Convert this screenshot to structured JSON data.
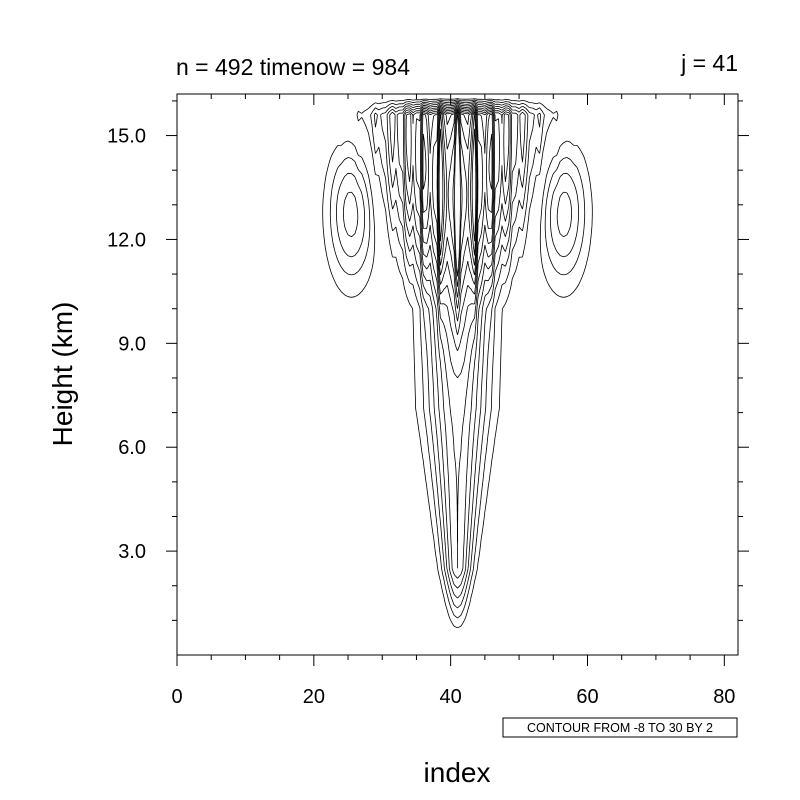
{
  "chart_data": {
    "type": "contour",
    "title_left": "n = 492 timenow = 984",
    "title_right": "j = 41",
    "xlabel": "index",
    "ylabel": "Height (km)",
    "xlim": [
      0,
      82
    ],
    "ylim": [
      0,
      16.2
    ],
    "xticks": [
      0,
      20,
      40,
      60,
      80
    ],
    "xtick_labels": [
      "0",
      "20",
      "40",
      "60",
      "80"
    ],
    "yticks": [
      3,
      6,
      9,
      12,
      15
    ],
    "ytick_labels": [
      "3.0",
      "6.0",
      "9.0",
      "12.0",
      "15.0"
    ],
    "contour_info": "CONTOUR FROM -8 TO 30 BY 2",
    "contour_min": -8,
    "contour_max": 30,
    "contour_interval": 2,
    "negative_contours_dashed": true,
    "field_structure": {
      "updraft_center_index": 41,
      "updraft_base_km": 0.7,
      "updraft_top_km": 16.0,
      "max_positive_approx": 30,
      "negative_lobes": [
        {
          "center_index": 25,
          "center_height_km": 12.8,
          "min_approx": -8
        },
        {
          "center_index": 57,
          "center_height_km": 12.8,
          "min_approx": -8
        }
      ]
    }
  }
}
